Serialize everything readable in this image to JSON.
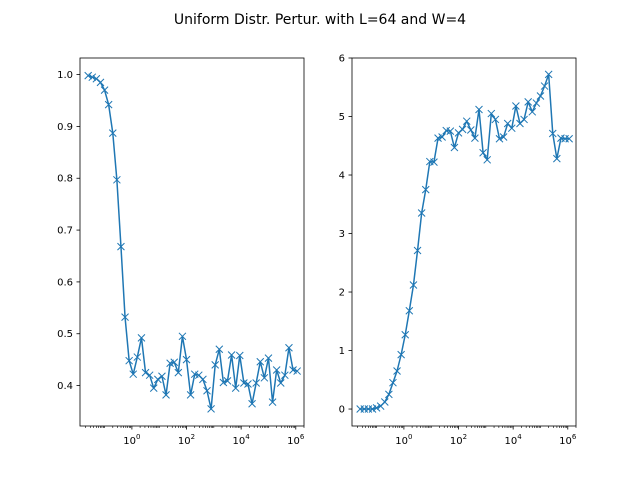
{
  "figure": {
    "title": "Uniform Distr. Pertur. with L=64 and W=4",
    "series_color": "#1f77b4"
  },
  "chart_data": [
    {
      "type": "line",
      "marker": "x",
      "xscale": "log",
      "xlim": [
        0.0126,
        2000000
      ],
      "ylim": [
        0.322,
        1.032
      ],
      "xticks": [
        {
          "value": 1,
          "base": "10",
          "exp": "0"
        },
        {
          "value": 100,
          "base": "10",
          "exp": "2"
        },
        {
          "value": 10000,
          "base": "10",
          "exp": "4"
        },
        {
          "value": 1000000,
          "base": "10",
          "exp": "6"
        }
      ],
      "yticks": [
        {
          "value": 0.4,
          "label": "0.4"
        },
        {
          "value": 0.5,
          "label": "0.5"
        },
        {
          "value": 0.6,
          "label": "0.6"
        },
        {
          "value": 0.7,
          "label": "0.7"
        },
        {
          "value": 0.8,
          "label": "0.8"
        },
        {
          "value": 0.9,
          "label": "0.9"
        },
        {
          "value": 1.0,
          "label": "1.0"
        }
      ],
      "x": [
        0.0251,
        0.0355,
        0.0501,
        0.0708,
        0.1,
        0.141,
        0.2,
        0.282,
        0.398,
        0.562,
        0.794,
        1.12,
        1.58,
        2.24,
        3.16,
        4.47,
        6.31,
        8.91,
        12.6,
        17.8,
        25.1,
        35.5,
        50.1,
        70.8,
        100,
        141,
        200,
        282,
        398,
        562,
        794,
        1122,
        1585,
        2239,
        3162,
        4467,
        6310,
        8913,
        12589,
        17783,
        25119,
        35481,
        50119,
        70795,
        100000,
        141254,
        199526,
        281838,
        398107,
        562341,
        794328,
        1122018
      ],
      "y": [
        0.998,
        0.995,
        0.992,
        0.985,
        0.97,
        0.942,
        0.887,
        0.797,
        0.668,
        0.532,
        0.448,
        0.422,
        0.455,
        0.492,
        0.425,
        0.42,
        0.395,
        0.412,
        0.418,
        0.382,
        0.443,
        0.445,
        0.425,
        0.495,
        0.45,
        0.382,
        0.422,
        0.42,
        0.412,
        0.39,
        0.355,
        0.44,
        0.47,
        0.406,
        0.409,
        0.459,
        0.395,
        0.458,
        0.405,
        0.403,
        0.365,
        0.405,
        0.446,
        0.415,
        0.453,
        0.368,
        0.43,
        0.405,
        0.42,
        0.473,
        0.43,
        0.428
      ]
    },
    {
      "type": "line",
      "marker": "x",
      "xscale": "log",
      "xlim": [
        0.0126,
        2000000
      ],
      "ylim": [
        -0.29,
        6.0
      ],
      "xticks": [
        {
          "value": 1,
          "base": "10",
          "exp": "0"
        },
        {
          "value": 100,
          "base": "10",
          "exp": "2"
        },
        {
          "value": 10000,
          "base": "10",
          "exp": "4"
        },
        {
          "value": 1000000,
          "base": "10",
          "exp": "6"
        }
      ],
      "yticks": [
        {
          "value": 0,
          "label": "0"
        },
        {
          "value": 1,
          "label": "1"
        },
        {
          "value": 2,
          "label": "2"
        },
        {
          "value": 3,
          "label": "3"
        },
        {
          "value": 4,
          "label": "4"
        },
        {
          "value": 5,
          "label": "5"
        },
        {
          "value": 6,
          "label": "6"
        }
      ],
      "x": [
        0.0251,
        0.0355,
        0.0501,
        0.0708,
        0.1,
        0.141,
        0.2,
        0.282,
        0.398,
        0.562,
        0.794,
        1.12,
        1.58,
        2.24,
        3.16,
        4.47,
        6.31,
        8.91,
        12.6,
        17.8,
        25.1,
        35.5,
        50.1,
        70.8,
        100,
        141,
        200,
        282,
        398,
        562,
        794,
        1122,
        1585,
        2239,
        3162,
        4467,
        6310,
        8913,
        12589,
        17783,
        25119,
        35481,
        50119,
        70795,
        100000,
        141254,
        199526,
        281838,
        398107,
        562341,
        794328,
        1122018
      ],
      "y": [
        0.0,
        0.0,
        0.0,
        0.0,
        0.02,
        0.05,
        0.12,
        0.25,
        0.45,
        0.65,
        0.93,
        1.27,
        1.68,
        2.12,
        2.71,
        3.35,
        3.75,
        4.23,
        4.22,
        4.63,
        4.65,
        4.76,
        4.75,
        4.47,
        4.72,
        4.78,
        4.92,
        4.77,
        4.63,
        5.12,
        4.38,
        4.26,
        5.05,
        4.95,
        4.62,
        4.65,
        4.88,
        4.8,
        5.18,
        4.88,
        4.95,
        5.25,
        5.08,
        5.23,
        5.35,
        5.52,
        5.72,
        4.71,
        4.28,
        4.63,
        4.62,
        4.62
      ]
    }
  ]
}
